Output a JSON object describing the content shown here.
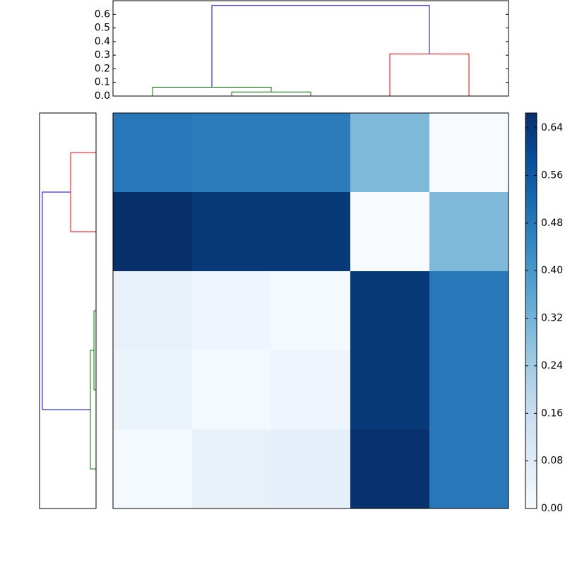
{
  "chart_data": [
    {
      "type": "dendrogram",
      "orientation": "top",
      "xlim": [
        0,
        50
      ],
      "ylim": [
        0,
        0.7
      ],
      "yticks": [
        {
          "value": 0,
          "label": "0.0"
        },
        0.1,
        0.2,
        0.3,
        0.4,
        0.5,
        0.6
      ],
      "links": [
        {
          "icoord": [
            15,
            15,
            25,
            25
          ],
          "dcoord": [
            0,
            0.03,
            0.03,
            0
          ],
          "color": "#008000"
        },
        {
          "icoord": [
            5,
            5,
            20,
            20
          ],
          "dcoord": [
            0,
            0.065,
            0.065,
            0.03
          ],
          "color": "#008000"
        },
        {
          "icoord": [
            35,
            35,
            45,
            45
          ],
          "dcoord": [
            0,
            0.31,
            0.31,
            0
          ],
          "color": "#ff0000"
        },
        {
          "icoord": [
            12.5,
            12.5,
            40,
            40
          ],
          "dcoord": [
            0.065,
            0.665,
            0.665,
            0.31
          ],
          "color": "#0000ff"
        }
      ]
    },
    {
      "type": "dendrogram",
      "orientation": "left",
      "xlim": [
        0.7,
        0
      ],
      "ylim": [
        50,
        0
      ],
      "links": [
        {
          "icoord": [
            5,
            5,
            15,
            15
          ],
          "dcoord": [
            0,
            0.315,
            0.315,
            0
          ],
          "color": "#ff0000"
        },
        {
          "icoord": [
            25,
            25,
            35,
            35
          ],
          "dcoord": [
            0,
            0.026,
            0.026,
            0
          ],
          "color": "#008000"
        },
        {
          "icoord": [
            30,
            30,
            45,
            45
          ],
          "dcoord": [
            0.026,
            0.07,
            0.07,
            0
          ],
          "color": "#008000"
        },
        {
          "icoord": [
            10,
            10,
            37.5,
            37.5
          ],
          "dcoord": [
            0.315,
            0.665,
            0.665,
            0.07
          ],
          "color": "#0000ff"
        }
      ]
    },
    {
      "type": "heatmap",
      "colormap": "Blues",
      "clim": [
        0,
        0.665
      ],
      "values": [
        [
          0.48,
          0.47,
          0.47,
          0.3,
          0.0
        ],
        [
          0.665,
          0.64,
          0.64,
          0.0,
          0.3
        ],
        [
          0.05,
          0.03,
          0.01,
          0.64,
          0.48
        ],
        [
          0.04,
          0.01,
          0.03,
          0.64,
          0.48
        ],
        [
          0.01,
          0.05,
          0.06,
          0.66,
          0.48
        ]
      ],
      "colorbar_ticks": [
        {
          "value": 0,
          "label": "0.00"
        },
        {
          "value": 0.08,
          "label": "0.08"
        },
        {
          "value": 0.16,
          "label": "0.16"
        },
        {
          "value": 0.24,
          "label": "0.24"
        },
        {
          "value": 0.32,
          "label": "0.32"
        },
        {
          "value": 0.4,
          "label": "0.40"
        },
        {
          "value": 0.48,
          "label": "0.48"
        },
        {
          "value": 0.56,
          "label": "0.56"
        },
        {
          "value": 0.64,
          "label": "0.64"
        }
      ]
    }
  ]
}
